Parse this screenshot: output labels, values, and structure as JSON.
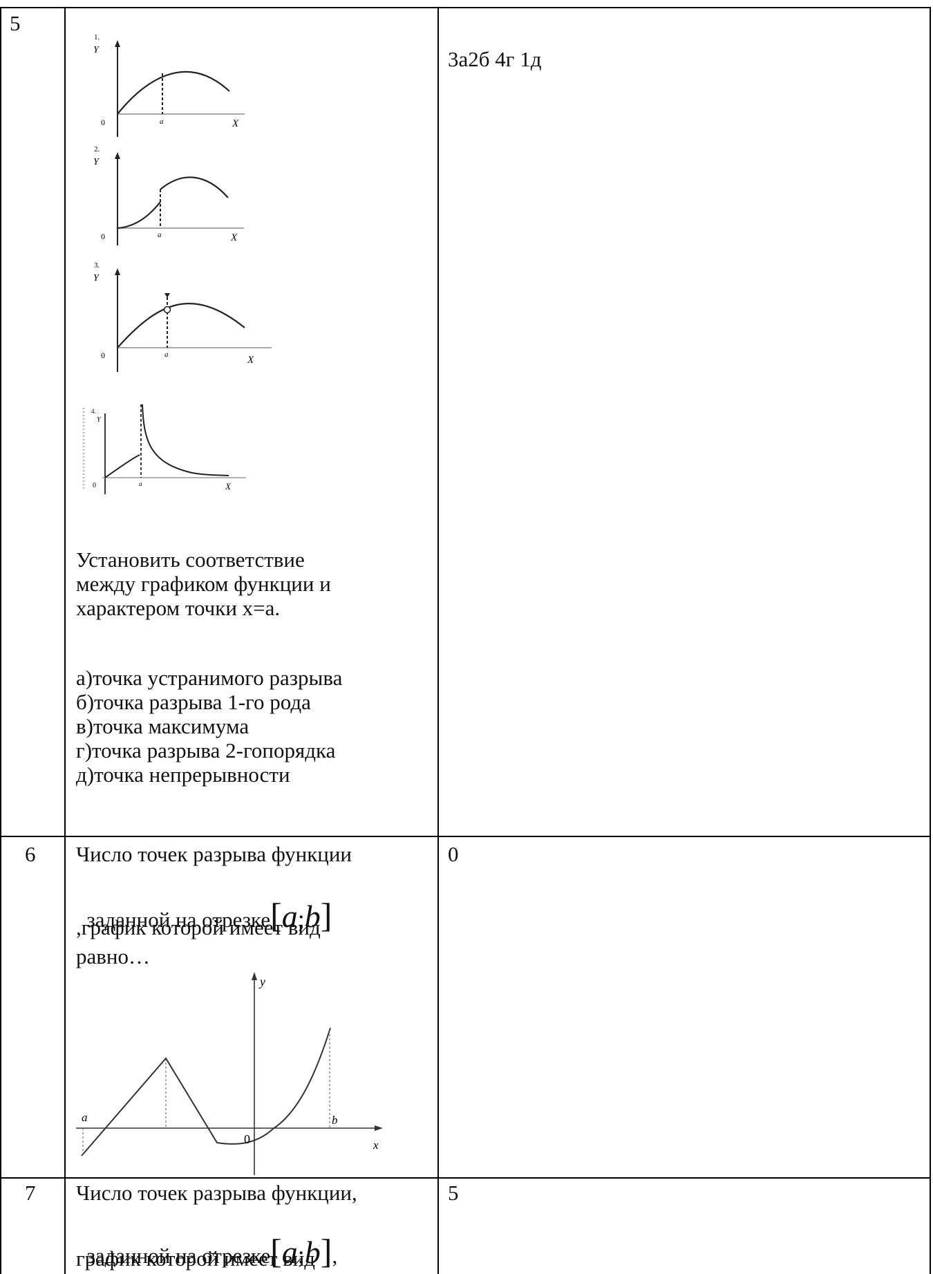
{
  "rows": [
    {
      "number": "5",
      "answer": "3а2б 4г 1д",
      "graph_labels": {
        "g1": {
          "idx": "1.",
          "y": "Y",
          "o": "0",
          "a": "a",
          "x": "X"
        },
        "g2": {
          "idx": "2.",
          "y": "Y",
          "o": "0",
          "a": "a",
          "x": "X"
        },
        "g3": {
          "idx": "3.",
          "y": "Y",
          "o": "0",
          "a": "a",
          "x": "X"
        },
        "g4": {
          "idx": "4.",
          "y": "Y",
          "o": "0",
          "a": "a",
          "x": "X"
        }
      },
      "instruction": [
        "Установить  соответствие",
        "между графиком функции и",
        "характером точки х=а."
      ],
      "options": [
        "а)точка устранимого разрыва",
        "б)точка разрыва 1-го рода",
        "в)точка максимума",
        "г)точка разрыва 2-гопорядка",
        "д)точка непрерывности"
      ]
    },
    {
      "number": "6",
      "answer": "0",
      "q_line1": "Число точек разрыва функции",
      "q_line2_prefix": "заданной на отрезке",
      "interval_a": "a",
      "interval_sep": ";",
      "interval_b": "b",
      "q_line3": ",график которой имеет вид",
      "q_line4": "равно…",
      "graph": {
        "y": "y",
        "x": "x",
        "a": "a",
        "b": "b",
        "o": "0"
      }
    },
    {
      "number": "7",
      "answer": "5",
      "q_line1": "Число точек разрыва функции,",
      "q_line2_prefix": "заданной на отрезке",
      "interval_a": "a",
      "interval_sep": ";",
      "interval_b": "b",
      "q_line2_suffix": ",",
      "q_line3": "график которой имеет вид"
    }
  ]
}
